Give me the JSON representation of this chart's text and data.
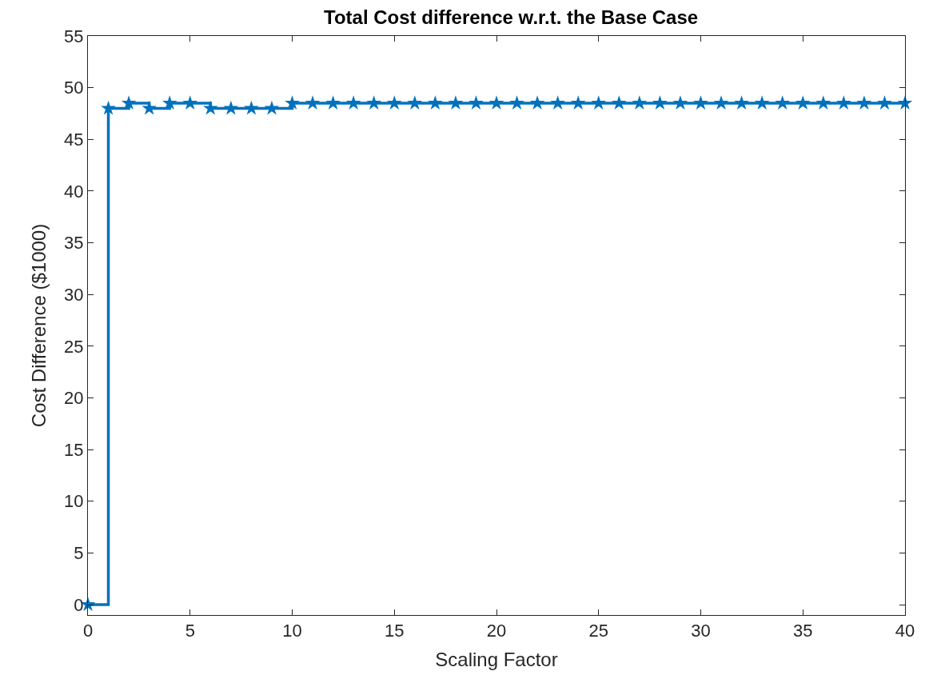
{
  "chart_data": {
    "type": "step",
    "title": "Total Cost difference w.r.t. the Base Case",
    "xlabel": "Scaling Factor",
    "ylabel": "Cost Difference ($1000)",
    "x": [
      0,
      1,
      2,
      3,
      4,
      5,
      6,
      7,
      8,
      9,
      10,
      11,
      12,
      13,
      14,
      15,
      16,
      17,
      18,
      19,
      20,
      21,
      22,
      23,
      24,
      25,
      26,
      27,
      28,
      29,
      30,
      31,
      32,
      33,
      34,
      35,
      36,
      37,
      38,
      39,
      40
    ],
    "series": [
      {
        "color": "#0072bd",
        "values": [
          0,
          48,
          48.5,
          48,
          48.5,
          48.5,
          48,
          48,
          48,
          48,
          48.5,
          48.5,
          48.5,
          48.5,
          48.5,
          48.5,
          48.5,
          48.5,
          48.5,
          48.5,
          48.5,
          48.5,
          48.5,
          48.5,
          48.5,
          48.5,
          48.5,
          48.5,
          48.5,
          48.5,
          48.5,
          48.5,
          48.5,
          48.5,
          48.5,
          48.5,
          48.5,
          48.5,
          48.5,
          48.5,
          48.5
        ]
      }
    ],
    "xlim": [
      0,
      40
    ],
    "xticks": [
      0,
      5,
      10,
      15,
      20,
      25,
      30,
      35,
      40
    ],
    "ylim": [
      -1,
      55
    ],
    "yticks": [
      0,
      5,
      10,
      15,
      20,
      25,
      30,
      35,
      40,
      45,
      50,
      55
    ],
    "marker": "star",
    "line_style": "solid"
  }
}
